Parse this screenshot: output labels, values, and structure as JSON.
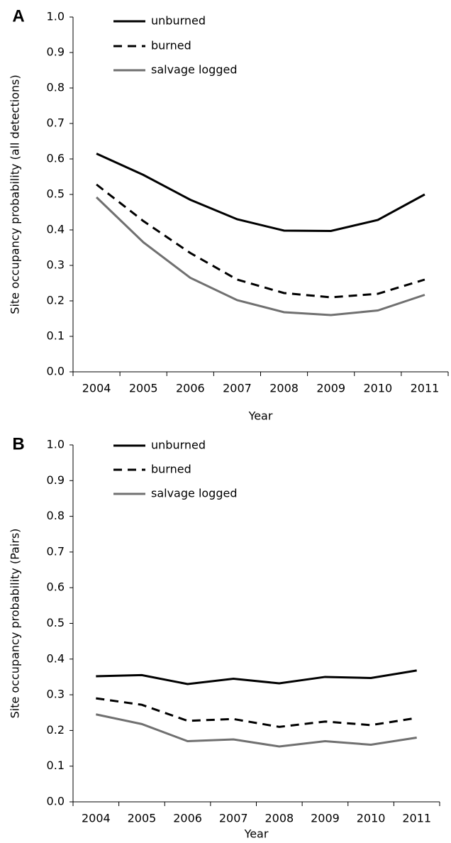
{
  "chart_data": [
    {
      "type": "line",
      "panel_label": "A",
      "x_label": "Year",
      "y_label": "Site occupancy probability (all detections)",
      "categories": [
        "2004",
        "2005",
        "2006",
        "2007",
        "2008",
        "2009",
        "2010",
        "2011"
      ],
      "ylim": [
        0,
        1
      ],
      "yticks": [
        {
          "value": 0,
          "label": "0.0"
        },
        0.1,
        0.2,
        0.3,
        0.4,
        0.5,
        0.6,
        0.7,
        0.8,
        0.9,
        {
          "value": 1,
          "label": "1.0"
        }
      ],
      "series": [
        {
          "name": "unburned",
          "color": "#000000",
          "dash": false,
          "values": [
            0.615,
            0.555,
            0.485,
            0.43,
            0.398,
            0.397,
            0.428,
            0.5
          ]
        },
        {
          "name": "burned",
          "color": "#000000",
          "dash": true,
          "values": [
            0.528,
            0.425,
            0.335,
            0.26,
            0.222,
            0.21,
            0.22,
            0.26
          ]
        },
        {
          "name": "salvage logged",
          "color": "#707070",
          "dash": false,
          "values": [
            0.492,
            0.365,
            0.265,
            0.202,
            0.168,
            0.16,
            0.173,
            0.217
          ]
        }
      ]
    },
    {
      "type": "line",
      "panel_label": "B",
      "x_label": "Year",
      "y_label": "Site occupancy probability (Pairs)",
      "categories": [
        "2004",
        "2005",
        "2006",
        "2007",
        "2008",
        "2009",
        "2010",
        "2011"
      ],
      "ylim": [
        0,
        1
      ],
      "yticks": [
        {
          "value": 0,
          "label": "0.0"
        },
        0.1,
        0.2,
        0.3,
        0.4,
        0.5,
        0.6,
        0.7,
        0.8,
        0.9,
        {
          "value": 1,
          "label": "1.0"
        }
      ],
      "series": [
        {
          "name": "unburned",
          "color": "#000000",
          "dash": false,
          "values": [
            0.352,
            0.355,
            0.33,
            0.345,
            0.332,
            0.35,
            0.347,
            0.368
          ]
        },
        {
          "name": "burned",
          "color": "#000000",
          "dash": true,
          "values": [
            0.29,
            0.272,
            0.227,
            0.232,
            0.21,
            0.225,
            0.215,
            0.235
          ]
        },
        {
          "name": "salvage logged",
          "color": "#707070",
          "dash": false,
          "values": [
            0.245,
            0.218,
            0.17,
            0.175,
            0.155,
            0.17,
            0.16,
            0.18
          ]
        }
      ]
    }
  ]
}
